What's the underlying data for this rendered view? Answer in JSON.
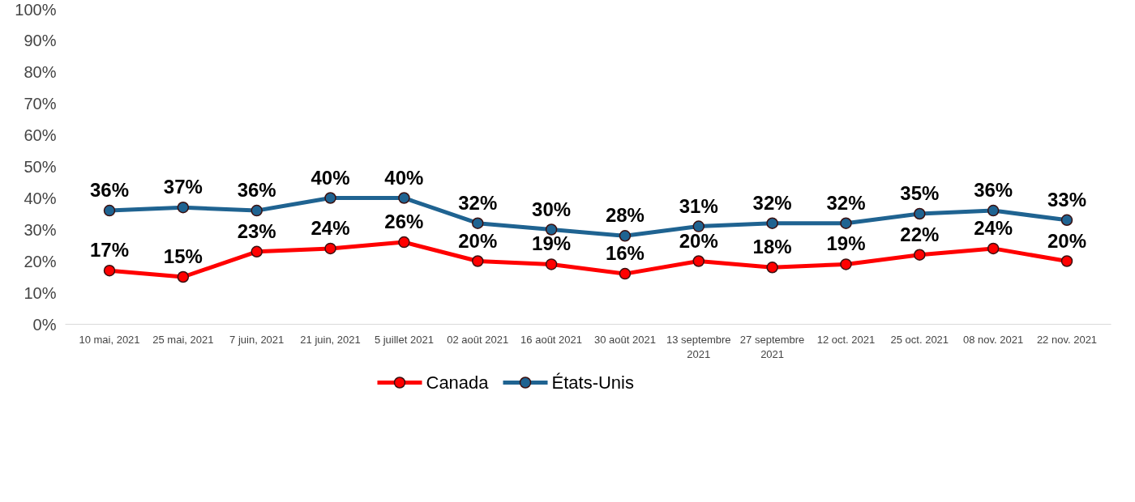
{
  "chart_data": {
    "type": "line",
    "categories": [
      "10 mai, 2021",
      "25 mai, 2021",
      "7 juin, 2021",
      "21 juin, 2021",
      "5 juillet 2021",
      "02 août 2021",
      "16 août 2021",
      "30 août 2021",
      "13 septembre 2021",
      "27 septembre 2021",
      "12 oct. 2021",
      "25 oct. 2021",
      "08 nov. 2021",
      "22 nov. 2021"
    ],
    "series": [
      {
        "name": "Canada",
        "color": "#ff0000",
        "values": [
          17,
          15,
          23,
          24,
          26,
          20,
          19,
          16,
          20,
          18,
          19,
          22,
          24,
          20
        ],
        "value_labels": [
          "17%",
          "15%",
          "23%",
          "24%",
          "26%",
          "20%",
          "19%",
          "16%",
          "20%",
          "18%",
          "19%",
          "22%",
          "24%",
          "20%"
        ]
      },
      {
        "name": "États-Unis",
        "color": "#1f6391",
        "values": [
          36,
          37,
          36,
          40,
          40,
          32,
          30,
          28,
          31,
          32,
          32,
          35,
          36,
          33
        ],
        "value_labels": [
          "36%",
          "37%",
          "36%",
          "40%",
          "40%",
          "32%",
          "30%",
          "28%",
          "31%",
          "32%",
          "32%",
          "35%",
          "36%",
          "33%"
        ]
      }
    ],
    "ylim": [
      0,
      100
    ],
    "yticks": [
      {
        "value": 0,
        "label": "0%"
      },
      {
        "value": 10,
        "label": "10%"
      },
      {
        "value": 20,
        "label": "20%"
      },
      {
        "value": 30,
        "label": "30%"
      },
      {
        "value": 40,
        "label": "40%"
      },
      {
        "value": 50,
        "label": "50%"
      },
      {
        "value": 60,
        "label": "60%"
      },
      {
        "value": 70,
        "label": "70%"
      },
      {
        "value": 80,
        "label": "80%"
      },
      {
        "value": 90,
        "label": "90%"
      },
      {
        "value": 100,
        "label": "100%"
      }
    ],
    "grid": false,
    "legend": "bottom",
    "marker": "circle",
    "line_style": "solid"
  }
}
